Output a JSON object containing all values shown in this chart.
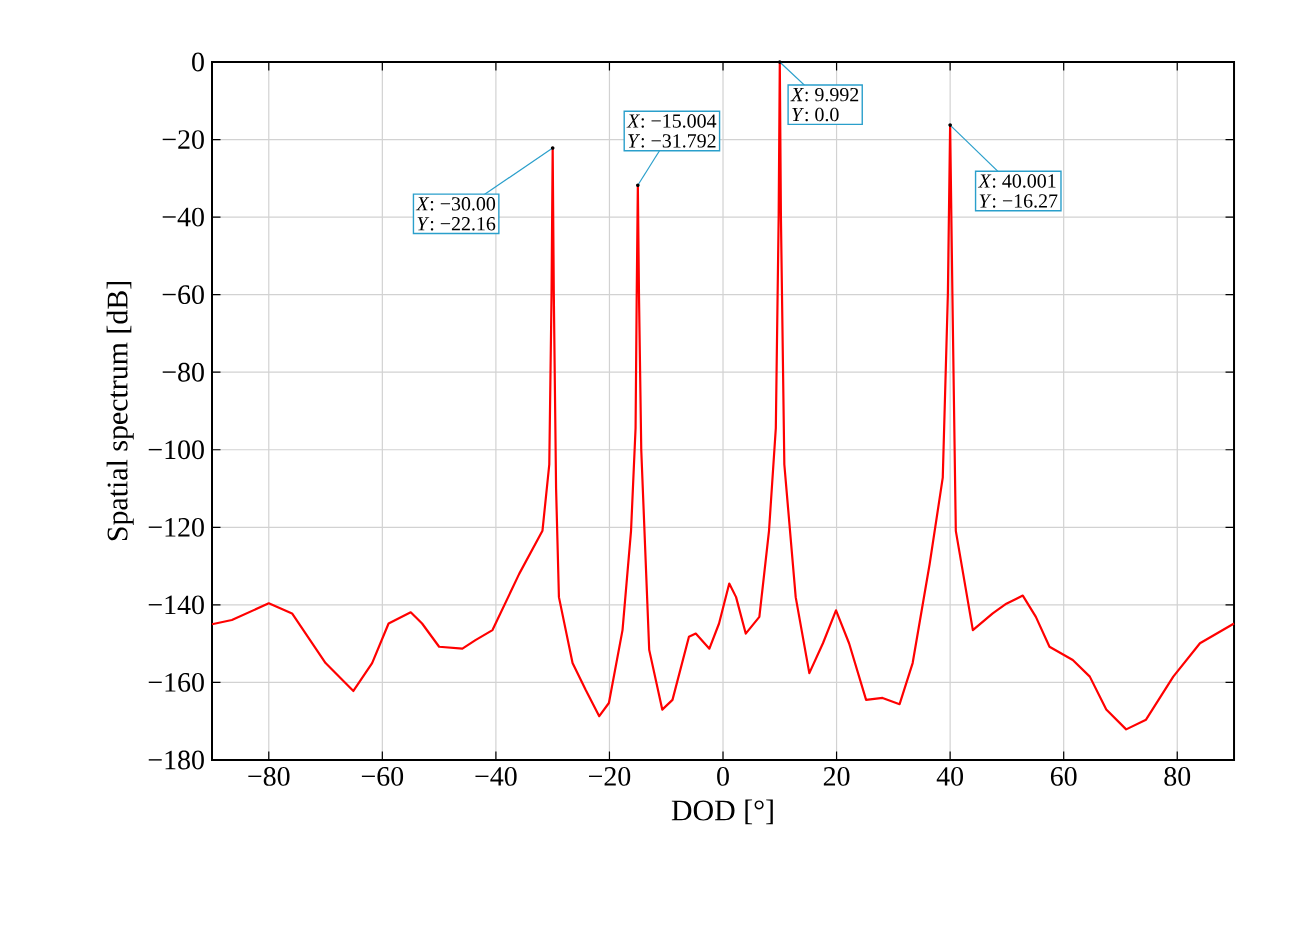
{
  "chart_data": {
    "type": "line",
    "xlabel": "DOD [°]",
    "ylabel": "Spatial spectrum [dB]",
    "xlim": [
      -90,
      90
    ],
    "ylim": [
      -180,
      0
    ],
    "xticks": [
      {
        "value": -80,
        "label": "−80"
      },
      {
        "value": -60,
        "label": "−60"
      },
      {
        "value": -40,
        "label": "−40"
      },
      {
        "value": -20,
        "label": "−20"
      },
      0,
      20,
      40,
      60,
      80
    ],
    "yticks": [
      {
        "value": -180,
        "label": "−180"
      },
      {
        "value": -160,
        "label": "−160"
      },
      {
        "value": -140,
        "label": "−140"
      },
      {
        "value": -120,
        "label": "−120"
      },
      {
        "value": -100,
        "label": "−100"
      },
      {
        "value": -80,
        "label": "−80"
      },
      {
        "value": -60,
        "label": "−60"
      },
      {
        "value": -40,
        "label": "−40"
      },
      {
        "value": -20,
        "label": "−20"
      },
      0
    ],
    "grid": true,
    "marker": "none",
    "line_style": "solid",
    "series": [
      {
        "color": "#ff0000",
        "x": [
          -90,
          -86.5,
          -80,
          -75.9,
          -70,
          -65.1,
          -61.8,
          -58.9,
          -55,
          -53,
          -50,
          -45.9,
          -43.6,
          -40.6,
          -35.9,
          -31.8,
          -30.6,
          -30.2,
          -30,
          -29.8,
          -29.4,
          -28.9,
          -26.5,
          -24.2,
          -21.8,
          -20.1,
          -17.7,
          -16.2,
          -15.4,
          -15.2,
          -15,
          -14.8,
          -14.4,
          -13,
          -10.7,
          -8.9,
          -6,
          -4.8,
          -2.4,
          -0.7,
          1.1,
          2.3,
          4,
          6.4,
          8.1,
          9.3,
          9.8,
          10,
          10.2,
          10.8,
          12.8,
          15.2,
          17.6,
          19.9,
          22.2,
          25.2,
          28.1,
          31.1,
          33.4,
          36.4,
          38.7,
          39.6,
          40,
          40.4,
          41,
          44,
          47.5,
          49.9,
          52.8,
          55.1,
          57.5,
          61.6,
          64.6,
          67.5,
          71,
          74.5,
          79.3,
          84,
          90
        ],
        "values": [
          -145,
          -143.9,
          -139.6,
          -142.2,
          -155,
          -162.2,
          -155,
          -144.8,
          -141.9,
          -144.8,
          -150.8,
          -151.3,
          -149.1,
          -146.5,
          -132,
          -120.9,
          -103.8,
          -60,
          -22.16,
          -60,
          -110,
          -138,
          -155,
          -161.9,
          -168.7,
          -165.3,
          -146.5,
          -120.9,
          -94.4,
          -60,
          -31.792,
          -60,
          -100,
          -151.6,
          -167,
          -164.5,
          -148.2,
          -147.4,
          -151.3,
          -144.8,
          -134.5,
          -138,
          -147.4,
          -143.1,
          -120.9,
          -94.4,
          -40,
          0,
          -40,
          -103.8,
          -138,
          -157.6,
          -149.9,
          -141.4,
          -149.9,
          -164.5,
          -164,
          -165.6,
          -155,
          -129.4,
          -107.2,
          -60,
          -16.27,
          -60,
          -120.9,
          -146.5,
          -142.2,
          -139.7,
          -137.6,
          -143.1,
          -150.8,
          -154.2,
          -158.5,
          -167,
          -172.1,
          -169.6,
          -158.5,
          -149.9,
          -144.8
        ]
      }
    ],
    "annotations": [
      {
        "text": "*X*: −30.00",
        "x": -30,
        "y": -22.16
      },
      {
        "text": "*Y*: −22.16",
        "x": -30,
        "y": -22.16
      },
      {
        "text": "*X*: −15.004",
        "x": -15.004,
        "y": -31.792
      },
      {
        "text": "*Y*: −31.792",
        "x": -15.004,
        "y": -31.792
      },
      {
        "text": "*X*: 9.992",
        "x": 9.992,
        "y": 0
      },
      {
        "text": "*Y*: 0.0",
        "x": 9.992,
        "y": 0
      },
      {
        "text": "*X*:   40.001",
        "x": 40.001,
        "y": -16.27
      },
      {
        "text": "*Y*: −16.27",
        "x": 40.001,
        "y": -16.27
      }
    ]
  }
}
